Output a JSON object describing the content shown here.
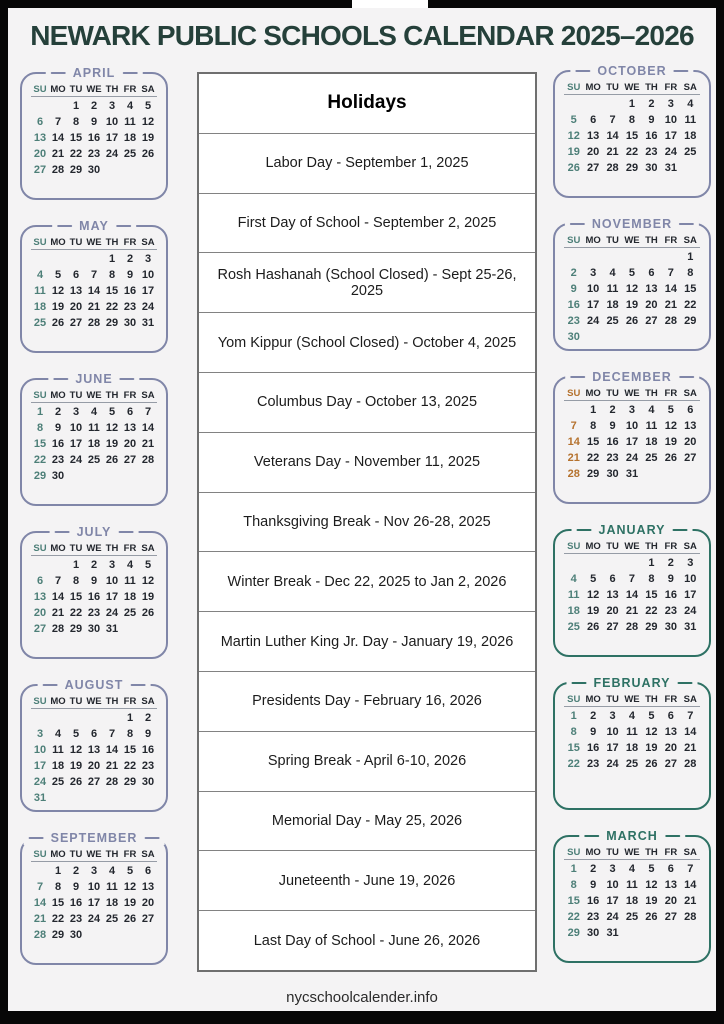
{
  "page": {
    "title": "NEWARK PUBLIC SCHOOLS CALENDAR 2025–2026",
    "footer": "nycschoolcalender.info",
    "colors": {
      "title": "#25403a",
      "purple_border": "#8086a8",
      "teal_border": "#2e7164",
      "sunday_teal": "#4d7f78",
      "sunday_orange": "#b5722e",
      "page_bg": "#f4f3f4"
    }
  },
  "weekday_headers": [
    "SU",
    "MO",
    "TU",
    "WE",
    "TH",
    "FR",
    "SA"
  ],
  "holidays": {
    "header": "Holidays",
    "items": [
      "Labor Day - September 1, 2025",
      "First Day of School - September 2, 2025",
      "Rosh Hashanah (School Closed) - Sept 25-26, 2025",
      "Yom Kippur (School Closed) - October 4, 2025",
      "Columbus Day - October 13, 2025",
      "Veterans Day - November 11, 2025",
      "Thanksgiving Break - Nov 26-28, 2025",
      "Winter Break - Dec 22, 2025 to Jan 2, 2026",
      "Martin Luther King Jr. Day - January 19, 2026",
      "Presidents Day - February 16, 2026",
      "Spring Break - April 6-10, 2026",
      "Memorial Day - May 25, 2026",
      "Juneteenth - June 19, 2026",
      "Last Day of School - June 26, 2026"
    ]
  },
  "months_left": [
    {
      "name": "APRIL",
      "theme": "purple",
      "sunday": "teal",
      "weeks": [
        [
          "",
          "",
          "1",
          "2",
          "3",
          "4",
          "5"
        ],
        [
          "6",
          "7",
          "8",
          "9",
          "10",
          "11",
          "12"
        ],
        [
          "13",
          "14",
          "15",
          "16",
          "17",
          "18",
          "19"
        ],
        [
          "20",
          "21",
          "22",
          "23",
          "24",
          "25",
          "26"
        ],
        [
          "27",
          "28",
          "29",
          "30",
          "",
          "",
          ""
        ]
      ]
    },
    {
      "name": "MAY",
      "theme": "purple",
      "sunday": "teal",
      "weeks": [
        [
          "",
          "",
          "",
          "",
          "1",
          "2",
          "3"
        ],
        [
          "4",
          "5",
          "6",
          "7",
          "8",
          "9",
          "10"
        ],
        [
          "11",
          "12",
          "13",
          "14",
          "15",
          "16",
          "17"
        ],
        [
          "18",
          "19",
          "20",
          "21",
          "22",
          "23",
          "24"
        ],
        [
          "25",
          "26",
          "27",
          "28",
          "29",
          "30",
          "31"
        ]
      ]
    },
    {
      "name": "JUNE",
      "theme": "purple",
      "sunday": "teal",
      "weeks": [
        [
          "1",
          "2",
          "3",
          "4",
          "5",
          "6",
          "7"
        ],
        [
          "8",
          "9",
          "10",
          "11",
          "12",
          "13",
          "14"
        ],
        [
          "15",
          "16",
          "17",
          "18",
          "19",
          "20",
          "21"
        ],
        [
          "22",
          "23",
          "24",
          "25",
          "26",
          "27",
          "28"
        ],
        [
          "29",
          "30",
          "",
          "",
          "",
          "",
          ""
        ]
      ]
    },
    {
      "name": "JULY",
      "theme": "purple",
      "sunday": "teal",
      "weeks": [
        [
          "",
          "",
          "1",
          "2",
          "3",
          "4",
          "5"
        ],
        [
          "6",
          "7",
          "8",
          "9",
          "10",
          "11",
          "12"
        ],
        [
          "13",
          "14",
          "15",
          "16",
          "17",
          "18",
          "19"
        ],
        [
          "20",
          "21",
          "22",
          "23",
          "24",
          "25",
          "26"
        ],
        [
          "27",
          "28",
          "29",
          "30",
          "31",
          "",
          ""
        ]
      ]
    },
    {
      "name": "AUGUST",
      "theme": "purple",
      "sunday": "teal",
      "weeks": [
        [
          "",
          "",
          "",
          "",
          "",
          "1",
          "2"
        ],
        [
          "3",
          "4",
          "5",
          "6",
          "7",
          "8",
          "9"
        ],
        [
          "10",
          "11",
          "12",
          "13",
          "14",
          "15",
          "16"
        ],
        [
          "17",
          "18",
          "19",
          "20",
          "21",
          "22",
          "23"
        ],
        [
          "24",
          "25",
          "26",
          "27",
          "28",
          "29",
          "30"
        ],
        [
          "31",
          "",
          "",
          "",
          "",
          "",
          ""
        ]
      ]
    },
    {
      "name": "SEPTEMBER",
      "theme": "purple",
      "sunday": "teal",
      "weeks": [
        [
          "",
          "1",
          "2",
          "3",
          "4",
          "5",
          "6"
        ],
        [
          "7",
          "8",
          "9",
          "10",
          "11",
          "12",
          "13"
        ],
        [
          "14",
          "15",
          "16",
          "17",
          "18",
          "19",
          "20"
        ],
        [
          "21",
          "22",
          "23",
          "24",
          "25",
          "26",
          "27"
        ],
        [
          "28",
          "29",
          "30",
          "",
          "",
          "",
          ""
        ]
      ]
    }
  ],
  "months_right": [
    {
      "name": "OCTOBER",
      "theme": "purple",
      "sunday": "teal",
      "weeks": [
        [
          "",
          "",
          "",
          "1",
          "2",
          "3",
          "4"
        ],
        [
          "5",
          "6",
          "7",
          "8",
          "9",
          "10",
          "11"
        ],
        [
          "12",
          "13",
          "14",
          "15",
          "16",
          "17",
          "18"
        ],
        [
          "19",
          "20",
          "21",
          "22",
          "23",
          "24",
          "25"
        ],
        [
          "26",
          "27",
          "28",
          "29",
          "30",
          "31",
          ""
        ]
      ]
    },
    {
      "name": "NOVEMBER",
      "theme": "purple",
      "sunday": "teal",
      "weeks": [
        [
          "",
          "",
          "",
          "",
          "",
          "",
          "1"
        ],
        [
          "2",
          "3",
          "4",
          "5",
          "6",
          "7",
          "8"
        ],
        [
          "9",
          "10",
          "11",
          "12",
          "13",
          "14",
          "15"
        ],
        [
          "16",
          "17",
          "18",
          "19",
          "20",
          "21",
          "22"
        ],
        [
          "23",
          "24",
          "25",
          "26",
          "27",
          "28",
          "29"
        ],
        [
          "30",
          "",
          "",
          "",
          "",
          "",
          ""
        ]
      ]
    },
    {
      "name": "DECEMBER",
      "theme": "purple",
      "sunday": "orange",
      "weeks": [
        [
          "",
          "1",
          "2",
          "3",
          "4",
          "5",
          "6"
        ],
        [
          "7",
          "8",
          "9",
          "10",
          "11",
          "12",
          "13"
        ],
        [
          "14",
          "15",
          "16",
          "17",
          "18",
          "19",
          "20"
        ],
        [
          "21",
          "22",
          "23",
          "24",
          "25",
          "26",
          "27"
        ],
        [
          "28",
          "29",
          "30",
          "31",
          "",
          "",
          ""
        ]
      ]
    },
    {
      "name": "JANUARY",
      "theme": "teal",
      "sunday": "teal",
      "weeks": [
        [
          "",
          "",
          "",
          "",
          "1",
          "2",
          "3"
        ],
        [
          "4",
          "5",
          "6",
          "7",
          "8",
          "9",
          "10"
        ],
        [
          "11",
          "12",
          "13",
          "14",
          "15",
          "16",
          "17"
        ],
        [
          "18",
          "19",
          "20",
          "21",
          "22",
          "23",
          "24"
        ],
        [
          "25",
          "26",
          "27",
          "28",
          "29",
          "30",
          "31"
        ]
      ]
    },
    {
      "name": "FEBRUARY",
      "theme": "teal",
      "sunday": "teal",
      "weeks": [
        [
          "1",
          "2",
          "3",
          "4",
          "5",
          "6",
          "7"
        ],
        [
          "8",
          "9",
          "10",
          "11",
          "12",
          "13",
          "14"
        ],
        [
          "15",
          "16",
          "17",
          "18",
          "19",
          "20",
          "21"
        ],
        [
          "22",
          "23",
          "24",
          "25",
          "26",
          "27",
          "28"
        ]
      ]
    },
    {
      "name": "MARCH",
      "theme": "teal",
      "sunday": "teal",
      "weeks": [
        [
          "1",
          "2",
          "3",
          "4",
          "5",
          "6",
          "7"
        ],
        [
          "8",
          "9",
          "10",
          "11",
          "12",
          "13",
          "14"
        ],
        [
          "15",
          "16",
          "17",
          "18",
          "19",
          "20",
          "21"
        ],
        [
          "22",
          "23",
          "24",
          "25",
          "26",
          "27",
          "28"
        ],
        [
          "29",
          "30",
          "31",
          "",
          "",
          "",
          ""
        ]
      ]
    }
  ]
}
